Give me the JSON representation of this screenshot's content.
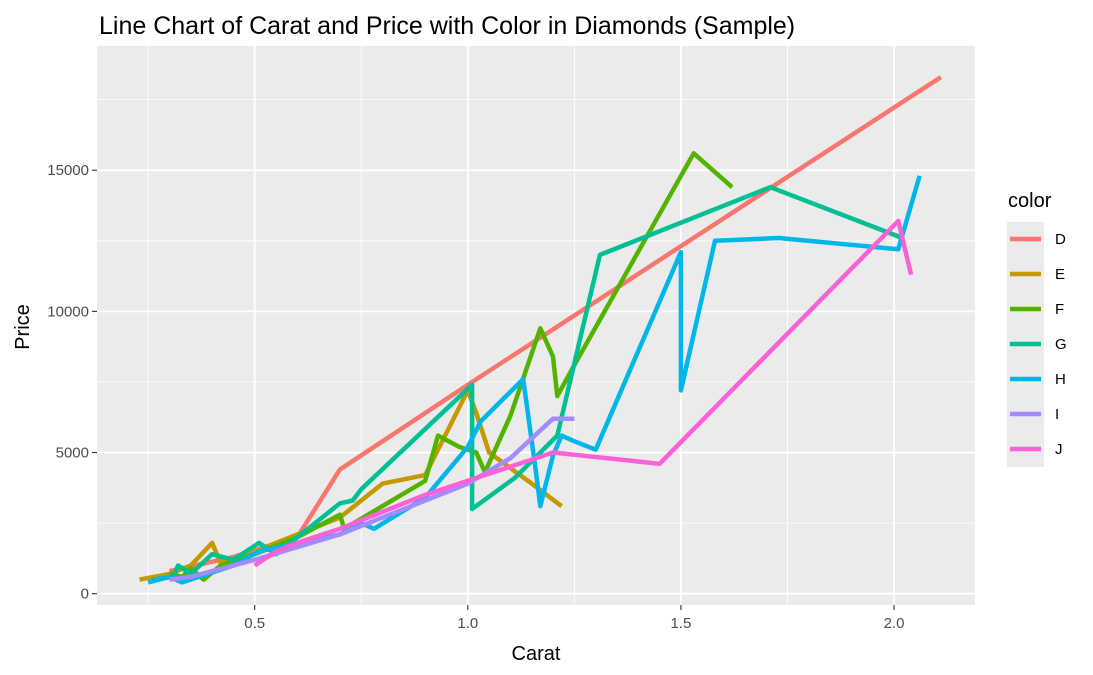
{
  "chart_data": {
    "type": "line",
    "title": "Line Chart of Carat and Price with Color in Diamonds (Sample)",
    "xlabel": "Carat",
    "ylabel": "Price",
    "xlim": [
      0.13,
      2.19
    ],
    "ylim": [
      -400,
      19400
    ],
    "xticks": [
      0.5,
      1.0,
      1.5,
      2.0
    ],
    "xtick_labels": [
      "0.5",
      "1.0",
      "1.5",
      "2.0"
    ],
    "yticks": [
      0,
      5000,
      10000,
      15000
    ],
    "ytick_labels": [
      "0",
      "5000",
      "10000",
      "15000"
    ],
    "grid": true,
    "legend": {
      "title": "color",
      "position": "right"
    },
    "series": [
      {
        "name": "D",
        "color": "#F8766D",
        "points": [
          [
            0.3,
            800
          ],
          [
            0.45,
            1300
          ],
          [
            0.6,
            2000
          ],
          [
            0.7,
            4400
          ],
          [
            1.01,
            7500
          ],
          [
            2.11,
            18300
          ]
        ]
      },
      {
        "name": "E",
        "color": "#C49A00",
        "points": [
          [
            0.23,
            500
          ],
          [
            0.3,
            700
          ],
          [
            0.35,
            1000
          ],
          [
            0.4,
            1800
          ],
          [
            0.42,
            1100
          ],
          [
            0.5,
            1500
          ],
          [
            0.7,
            2700
          ],
          [
            0.75,
            3300
          ],
          [
            0.8,
            3900
          ],
          [
            0.9,
            4200
          ],
          [
            1.0,
            7200
          ],
          [
            1.02,
            6400
          ],
          [
            1.05,
            5000
          ],
          [
            1.15,
            3900
          ],
          [
            1.22,
            3100
          ]
        ]
      },
      {
        "name": "F",
        "color": "#53B400",
        "points": [
          [
            0.3,
            700
          ],
          [
            0.33,
            600
          ],
          [
            0.35,
            900
          ],
          [
            0.38,
            500
          ],
          [
            0.42,
            1000
          ],
          [
            0.5,
            1400
          ],
          [
            0.6,
            2000
          ],
          [
            0.7,
            2800
          ],
          [
            0.71,
            2300
          ],
          [
            0.9,
            4000
          ],
          [
            0.93,
            5600
          ],
          [
            0.98,
            5200
          ],
          [
            1.02,
            5000
          ],
          [
            1.04,
            4300
          ],
          [
            1.1,
            6300
          ],
          [
            1.17,
            9400
          ],
          [
            1.2,
            8400
          ],
          [
            1.21,
            7000
          ],
          [
            1.25,
            8100
          ],
          [
            1.53,
            15600
          ],
          [
            1.62,
            14400
          ]
        ]
      },
      {
        "name": "G",
        "color": "#00C094",
        "points": [
          [
            0.26,
            500
          ],
          [
            0.31,
            600
          ],
          [
            0.32,
            1000
          ],
          [
            0.35,
            700
          ],
          [
            0.4,
            1400
          ],
          [
            0.45,
            1200
          ],
          [
            0.51,
            1800
          ],
          [
            0.55,
            1400
          ],
          [
            0.7,
            3200
          ],
          [
            0.73,
            3300
          ],
          [
            0.75,
            3700
          ],
          [
            1.01,
            7400
          ],
          [
            1.01,
            3000
          ],
          [
            1.11,
            4100
          ],
          [
            1.21,
            5600
          ],
          [
            1.31,
            12000
          ],
          [
            1.71,
            14400
          ],
          [
            2.02,
            12600
          ]
        ]
      },
      {
        "name": "H",
        "color": "#00B6EB",
        "points": [
          [
            0.25,
            400
          ],
          [
            0.3,
            600
          ],
          [
            0.33,
            400
          ],
          [
            0.45,
            1000
          ],
          [
            0.51,
            1500
          ],
          [
            0.7,
            2100
          ],
          [
            0.75,
            2500
          ],
          [
            0.78,
            2300
          ],
          [
            0.9,
            3400
          ],
          [
            1.0,
            5200
          ],
          [
            1.03,
            6100
          ],
          [
            1.13,
            7600
          ],
          [
            1.16,
            4300
          ],
          [
            1.17,
            3100
          ],
          [
            1.2,
            4900
          ],
          [
            1.22,
            5600
          ],
          [
            1.25,
            5400
          ],
          [
            1.3,
            5100
          ],
          [
            1.5,
            12100
          ],
          [
            1.5,
            7200
          ],
          [
            1.58,
            12500
          ],
          [
            1.73,
            12600
          ],
          [
            2.01,
            12200
          ],
          [
            2.06,
            14800
          ]
        ]
      },
      {
        "name": "I",
        "color": "#A58AFF",
        "points": [
          [
            0.3,
            500
          ],
          [
            0.35,
            600
          ],
          [
            0.5,
            1200
          ],
          [
            0.7,
            2100
          ],
          [
            0.8,
            2700
          ],
          [
            1.0,
            3900
          ],
          [
            1.1,
            4800
          ],
          [
            1.2,
            6200
          ],
          [
            1.25,
            6200
          ]
        ]
      },
      {
        "name": "J",
        "color": "#FB61D7",
        "points": [
          [
            0.5,
            1000
          ],
          [
            0.55,
            1500
          ],
          [
            0.6,
            1800
          ],
          [
            0.7,
            2300
          ],
          [
            0.9,
            3500
          ],
          [
            1.0,
            4000
          ],
          [
            1.2,
            5000
          ],
          [
            1.45,
            4600
          ],
          [
            2.01,
            13200
          ],
          [
            2.04,
            11300
          ]
        ]
      }
    ]
  }
}
